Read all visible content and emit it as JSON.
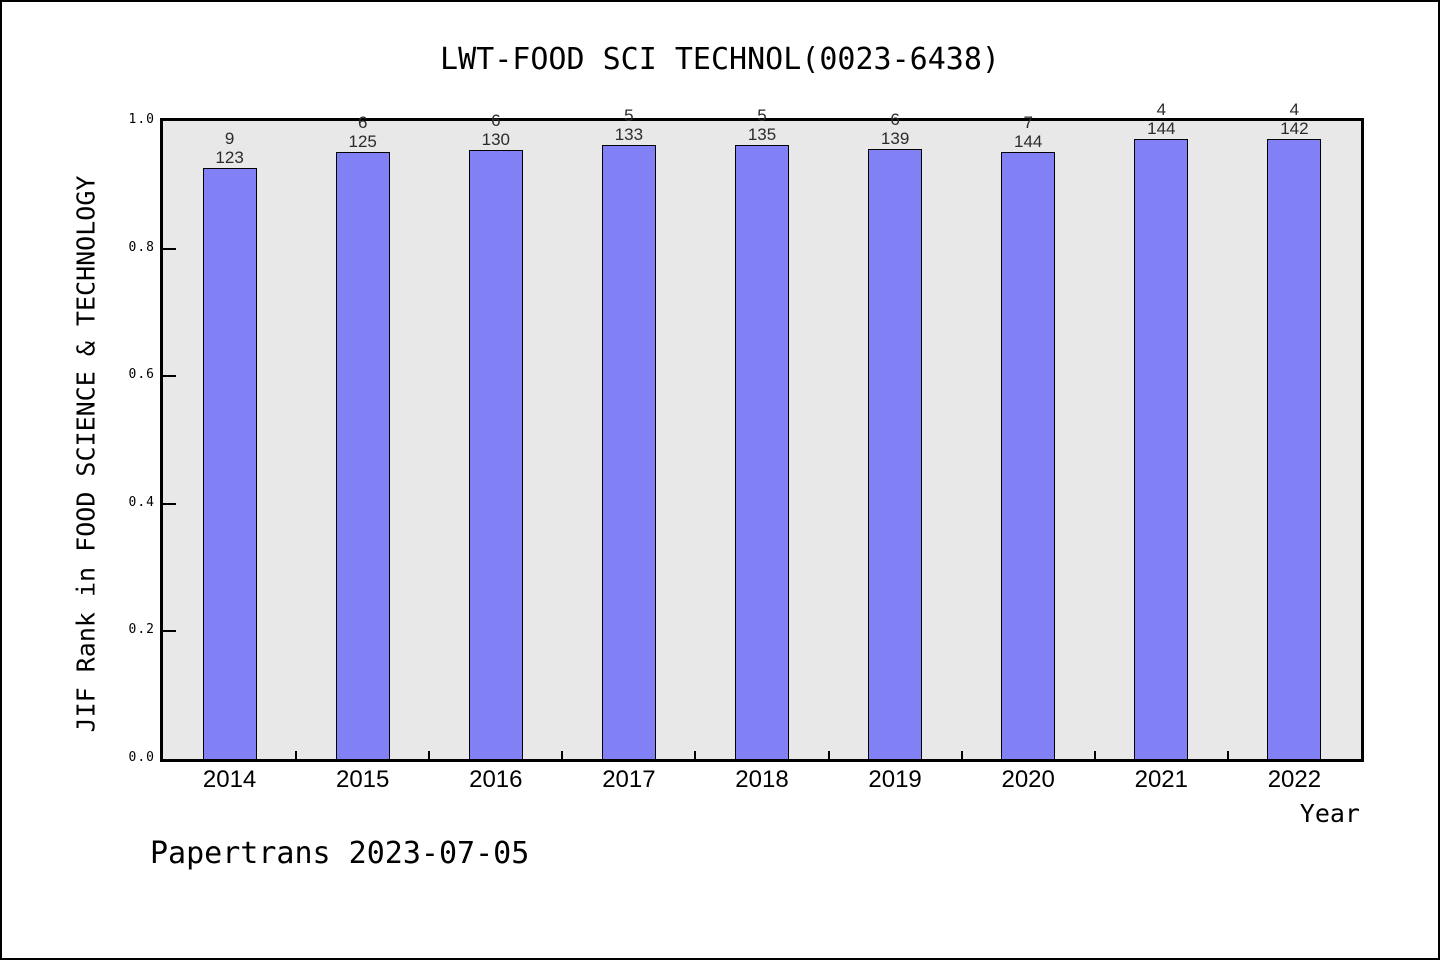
{
  "page": {
    "title": "LWT-FOOD SCI TECHNOL(0023-6438)",
    "footer": "Papertrans 2023-07-05"
  },
  "chart_data": {
    "type": "bar",
    "title": "LWT-FOOD SCI TECHNOL(0023-6438)",
    "xlabel": "Year",
    "ylabel": "JIF Rank in FOOD SCIENCE & TECHNOLOGY",
    "categories": [
      "2014",
      "2015",
      "2016",
      "2017",
      "2018",
      "2019",
      "2020",
      "2021",
      "2022"
    ],
    "series": [
      {
        "name": "JIF Rank in FOOD SCIENCE & TECHNOLOGY",
        "bar_labels": [
          {
            "numerator": "9",
            "denominator": "123"
          },
          {
            "numerator": "6",
            "denominator": "125"
          },
          {
            "numerator": "6",
            "denominator": "130"
          },
          {
            "numerator": "5",
            "denominator": "133"
          },
          {
            "numerator": "5",
            "denominator": "135"
          },
          {
            "numerator": "6",
            "denominator": "139"
          },
          {
            "numerator": "7",
            "denominator": "144"
          },
          {
            "numerator": "4",
            "denominator": "144"
          },
          {
            "numerator": "4",
            "denominator": "142"
          }
        ],
        "values": [
          0.9268,
          0.952,
          0.9538,
          0.9624,
          0.963,
          0.9568,
          0.9514,
          0.9722,
          0.9718
        ]
      }
    ],
    "ylim": [
      0.0,
      1.0
    ],
    "y_ticks": [
      "0.0",
      "0.2",
      "0.4",
      "0.6",
      "0.8",
      "1.0"
    ],
    "grid": "off",
    "legend": "none",
    "colors": {
      "bar_fill": "#8181F5",
      "bar_edge": "#000000",
      "plot_bg": "#E8E8E8",
      "text": "#000000"
    }
  }
}
